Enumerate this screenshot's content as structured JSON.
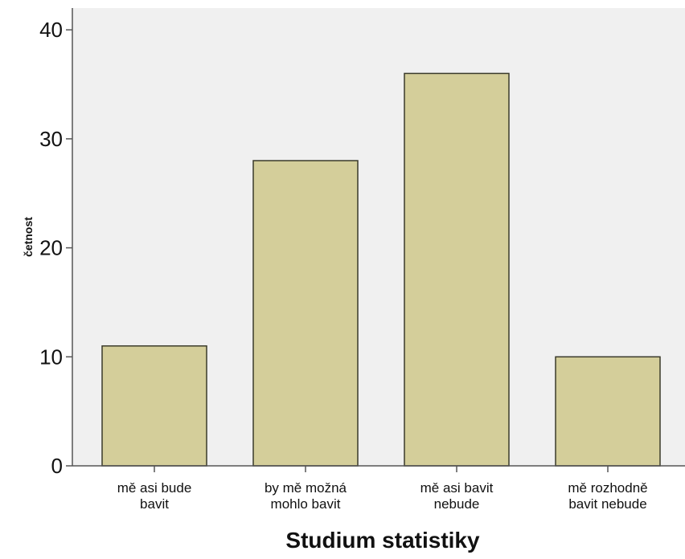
{
  "chart_data": {
    "type": "bar",
    "categories": [
      [
        "mě asi bude",
        "bavit"
      ],
      [
        "by mě možná",
        "mohlo bavit"
      ],
      [
        "mě asi bavit",
        "nebude"
      ],
      [
        "mě rozhodně",
        "bavit nebude"
      ]
    ],
    "values": [
      11,
      28,
      36,
      10
    ],
    "xlabel": "Studium statistiky",
    "ylabel": "četnost",
    "ylim": [
      0,
      42
    ],
    "yticks": [
      0,
      10,
      20,
      30,
      40
    ],
    "grid": false,
    "colors": {
      "plot_background": "#f0f0f0",
      "bar_fill": "#d4ce9a",
      "bar_stroke": "#3a3a2a",
      "axis": "#555555",
      "text": "#111111"
    }
  }
}
